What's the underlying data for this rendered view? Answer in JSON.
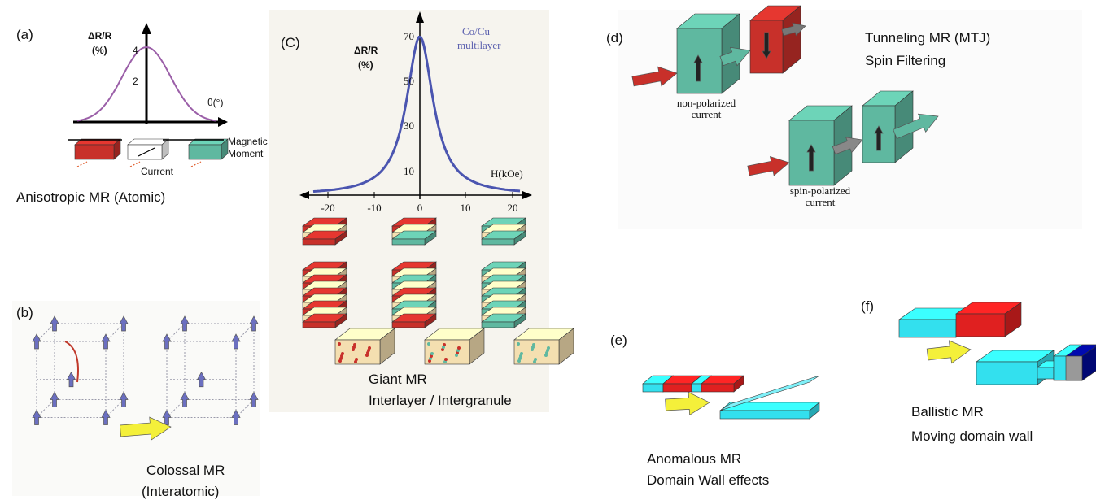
{
  "panels": {
    "a": {
      "label": "(a)",
      "y_axis_label": "ΔR/R",
      "y_axis_unit": "(%)",
      "yticks": [
        4,
        2
      ],
      "x_axis_label": "θ(°)",
      "moment_label": [
        "Magnetic",
        "Moment"
      ],
      "current_label": "Current",
      "caption": "Anisotropic MR (Atomic)"
    },
    "b": {
      "label": "(b)",
      "caption": [
        "Colossal MR",
        "(Interatomic)"
      ]
    },
    "c": {
      "label": "(C)",
      "y_axis_label": "ΔR/R",
      "y_axis_unit": "(%)",
      "yticks": [
        70,
        50,
        30,
        10
      ],
      "xticks": [
        -20,
        -10,
        0,
        10,
        20
      ],
      "x_axis_label": "H(kOe)",
      "series_label": [
        "Co/Cu",
        "multilayer"
      ],
      "caption": [
        "Giant MR",
        "Interlayer / Intergranule"
      ]
    },
    "d": {
      "label": "(d)",
      "title": [
        "Tunneling MR (MTJ)",
        "Spin Filtering"
      ],
      "upper_label": [
        "non-polarized",
        "current"
      ],
      "lower_label": [
        "spin-polarized",
        "current"
      ]
    },
    "e": {
      "label": "(e)",
      "caption": [
        "Anomalous MR",
        "Domain Wall effects"
      ]
    },
    "f": {
      "label": "(f)",
      "caption": [
        "Ballistic MR",
        "Moving domain wall"
      ]
    }
  }
}
